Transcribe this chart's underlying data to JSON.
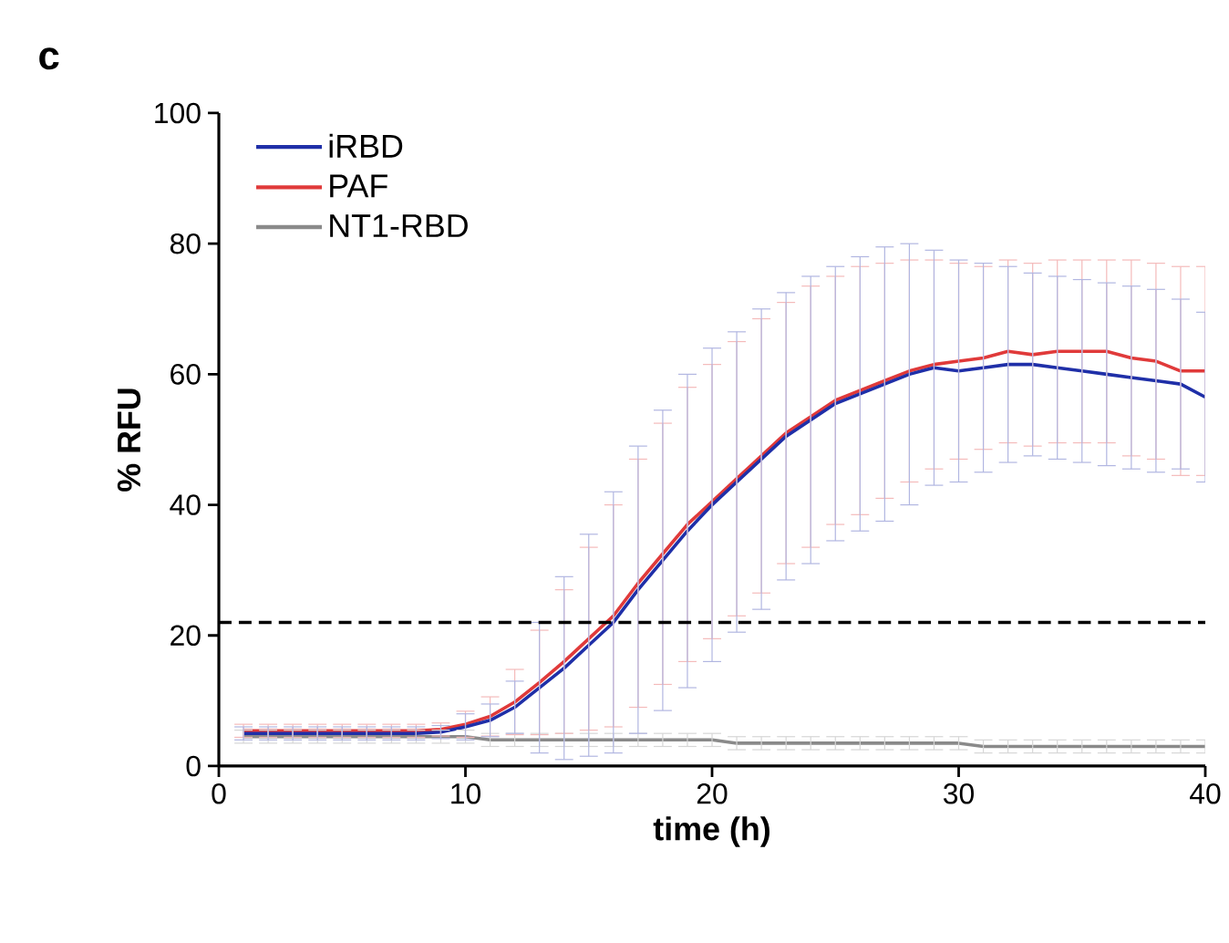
{
  "chart_data": {
    "type": "line",
    "title": "c",
    "xlabel": "time (h)",
    "ylabel": "% RFU",
    "x": [
      1,
      2,
      3,
      4,
      5,
      6,
      7,
      8,
      9,
      10,
      11,
      12,
      13,
      14,
      15,
      16,
      17,
      18,
      19,
      20,
      21,
      22,
      23,
      24,
      25,
      26,
      27,
      28,
      29,
      30,
      31,
      32,
      33,
      34,
      35,
      36,
      37,
      38,
      39,
      40
    ],
    "series": [
      {
        "name": "iRBD",
        "color": "#1f2fa8",
        "values": [
          5,
          5,
          5,
          5,
          5,
          5,
          5,
          5,
          5.2,
          6,
          7,
          9,
          12,
          15,
          18.5,
          22,
          27,
          31.5,
          36,
          40,
          43.5,
          47,
          50.5,
          53,
          55.5,
          57,
          58.5,
          60,
          61,
          60.5,
          61,
          61.5,
          61.5,
          61,
          60.5,
          60,
          59.5,
          59,
          58.5,
          56.5
        ],
        "errors": [
          1,
          1,
          1,
          1,
          1,
          1,
          1,
          1,
          1,
          2,
          2.5,
          4,
          10,
          14,
          17,
          20,
          22,
          23,
          24,
          24,
          23,
          23,
          22,
          22,
          21,
          21,
          21,
          20,
          18,
          17,
          16,
          15,
          14,
          14,
          14,
          14,
          14,
          14,
          13,
          13
        ]
      },
      {
        "name": "PAF",
        "color": "#e03a3a",
        "values": [
          5.4,
          5.4,
          5.4,
          5.4,
          5.4,
          5.4,
          5.4,
          5.4,
          5.6,
          6.4,
          7.6,
          9.8,
          12.8,
          16,
          19.5,
          23,
          28,
          32.5,
          37,
          40.5,
          44,
          47.5,
          51,
          53.5,
          56,
          57.5,
          59,
          60.5,
          61.5,
          62,
          62.5,
          63.5,
          63,
          63.5,
          63.5,
          63.5,
          62.5,
          62,
          60.5,
          60.5
        ],
        "errors": [
          1,
          1,
          1,
          1,
          1,
          1,
          1,
          1,
          1,
          2,
          3,
          5,
          8,
          11,
          14,
          17,
          19,
          20,
          21,
          21,
          21,
          21,
          20,
          20,
          19,
          19,
          18,
          17,
          16,
          15,
          14,
          14,
          14,
          14,
          14,
          14,
          15,
          15,
          16,
          16
        ]
      },
      {
        "name": "NT1-RBD",
        "color": "#8a8a8a",
        "values": [
          4.5,
          4.5,
          4.5,
          4.5,
          4.5,
          4.5,
          4.5,
          4.5,
          4.5,
          4.5,
          4,
          4,
          4,
          4,
          4,
          4,
          4,
          4,
          4,
          4,
          3.5,
          3.5,
          3.5,
          3.5,
          3.5,
          3.5,
          3.5,
          3.5,
          3.5,
          3.5,
          3,
          3,
          3,
          3,
          3,
          3,
          3,
          3,
          3,
          3
        ],
        "errors": [
          1,
          1,
          1,
          1,
          1,
          1,
          1,
          1,
          1,
          1,
          1,
          1,
          1,
          1,
          1,
          1,
          1,
          1,
          1,
          1,
          1,
          1,
          1,
          1,
          1,
          1,
          1,
          1,
          1,
          1,
          1,
          1,
          1,
          1,
          1,
          1,
          1,
          1,
          1,
          1
        ]
      }
    ],
    "xlim": [
      0,
      40
    ],
    "xticks": [
      0,
      10,
      20,
      30,
      40
    ],
    "ylim": [
      0,
      100
    ],
    "yticks": [
      0,
      20,
      40,
      60,
      80,
      100
    ],
    "ref_lines": [
      {
        "axis": "y",
        "value": 22,
        "color": "#000000",
        "line_style": "dashed"
      }
    ],
    "legend": "top left",
    "marker": "none",
    "line_style": "solid"
  }
}
